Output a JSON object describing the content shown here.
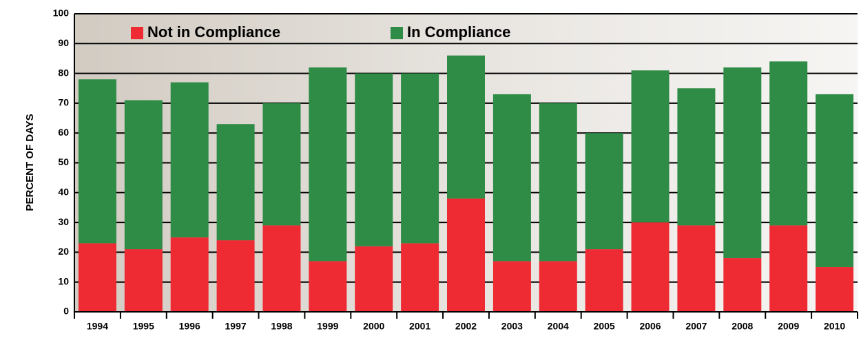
{
  "chart_data": {
    "type": "stacked-bar",
    "y_label": "PERCENT OF DAYS",
    "categories": [
      "1994",
      "1995",
      "1996",
      "1997",
      "1998",
      "1999",
      "2000",
      "2001",
      "2002",
      "2003",
      "2004",
      "2005",
      "2006",
      "2007",
      "2008",
      "2009",
      "2010"
    ],
    "series": [
      {
        "name": "Not in Compliance",
        "color": "#ee2a33",
        "values": [
          23,
          21,
          25,
          24,
          29,
          17,
          22,
          23,
          38,
          17,
          17,
          21,
          30,
          29,
          18,
          29,
          15
        ]
      },
      {
        "name": "In Compliance",
        "color": "#2f8c47",
        "values": [
          55,
          50,
          52,
          39,
          41,
          65,
          58,
          57,
          48,
          56,
          53,
          39,
          51,
          46,
          64,
          55,
          58
        ]
      }
    ],
    "ylim": [
      0,
      100
    ],
    "yticks": [
      0,
      10,
      20,
      30,
      40,
      50,
      60,
      70,
      80,
      90,
      100
    ],
    "grid": true
  }
}
